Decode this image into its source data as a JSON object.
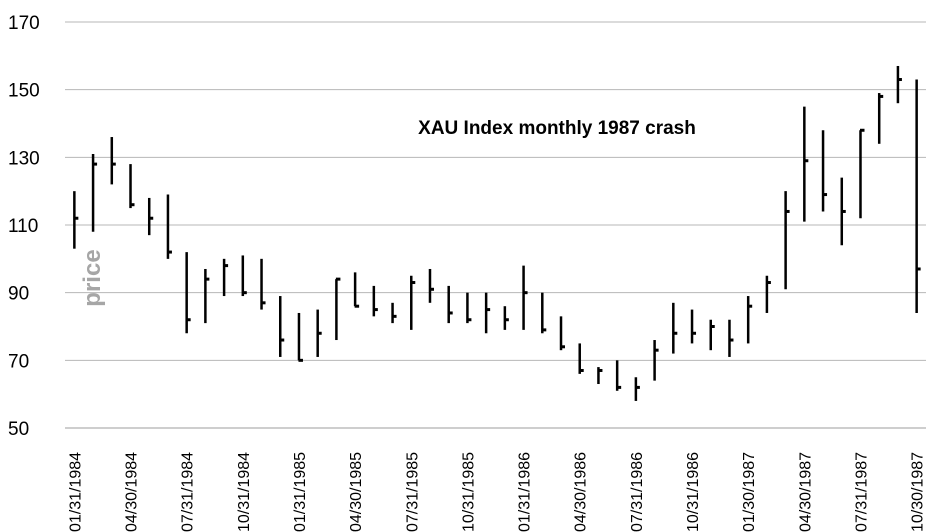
{
  "chart_data": {
    "type": "ohlc",
    "title": "XAU Index monthly 1987 crash",
    "ylabel": "price",
    "xlabel": "",
    "ylim": [
      50,
      170
    ],
    "yticks": [
      50,
      70,
      90,
      110,
      130,
      150,
      170
    ],
    "grid": "horizontal",
    "x_tick_labels": [
      "01/31/1984",
      "04/30/1984",
      "07/31/1984",
      "10/31/1984",
      "01/31/1985",
      "04/30/1985",
      "07/31/1985",
      "10/31/1985",
      "01/31/1986",
      "04/30/1986",
      "07/31/1986",
      "10/31/1986",
      "01/30/1987",
      "04/30/1987",
      "07/31/1987",
      "10/30/1987"
    ],
    "series": [
      {
        "color": "#000000",
        "high": [
          120,
          131,
          136,
          128,
          118,
          119,
          102,
          97,
          100,
          101,
          100,
          89,
          84,
          85,
          94,
          96,
          92,
          87,
          95,
          97,
          92,
          90,
          90,
          86,
          98,
          90,
          83,
          75,
          68,
          70,
          65,
          76,
          87,
          85,
          82,
          82,
          89,
          95,
          120,
          145,
          138,
          124,
          138,
          149,
          157,
          153
        ],
        "low": [
          103,
          108,
          122,
          115,
          107,
          100,
          78,
          81,
          89,
          89,
          85,
          71,
          70,
          71,
          76,
          86,
          83,
          81,
          79,
          87,
          81,
          81,
          78,
          79,
          79,
          78,
          73,
          66,
          63,
          61,
          58,
          64,
          72,
          75,
          73,
          71,
          75,
          84,
          91,
          111,
          114,
          104,
          112,
          134,
          146,
          84
        ],
        "close": [
          112,
          128,
          128,
          116,
          112,
          102,
          82,
          94,
          98,
          90,
          87,
          76,
          70,
          78,
          94,
          86,
          85,
          83,
          93,
          91,
          84,
          82,
          85,
          82,
          90,
          79,
          74,
          67,
          67,
          62,
          62,
          73,
          78,
          78,
          80,
          76,
          86,
          93,
          114,
          129,
          119,
          114,
          138,
          148,
          153,
          97
        ]
      }
    ]
  }
}
